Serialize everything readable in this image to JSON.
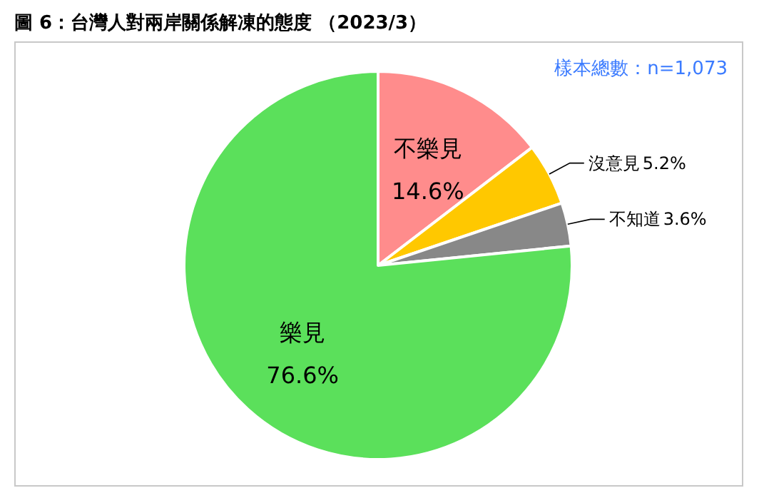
{
  "chart_data": {
    "type": "pie",
    "title": "圖 6：台灣人對兩岸關係解凍的態度 （2023/3）",
    "categories": [
      "不樂見",
      "沒意見",
      "不知道",
      "樂見"
    ],
    "values": [
      14.6,
      5.2,
      3.6,
      76.6
    ],
    "colors": [
      "#ff8c8c",
      "#ffc800",
      "#888888",
      "#5be05b"
    ],
    "value_labels": [
      "14.6%",
      "5.2%",
      "3.6%",
      "76.6%"
    ],
    "annotations": [
      "樣本總數：n=1,073"
    ]
  }
}
